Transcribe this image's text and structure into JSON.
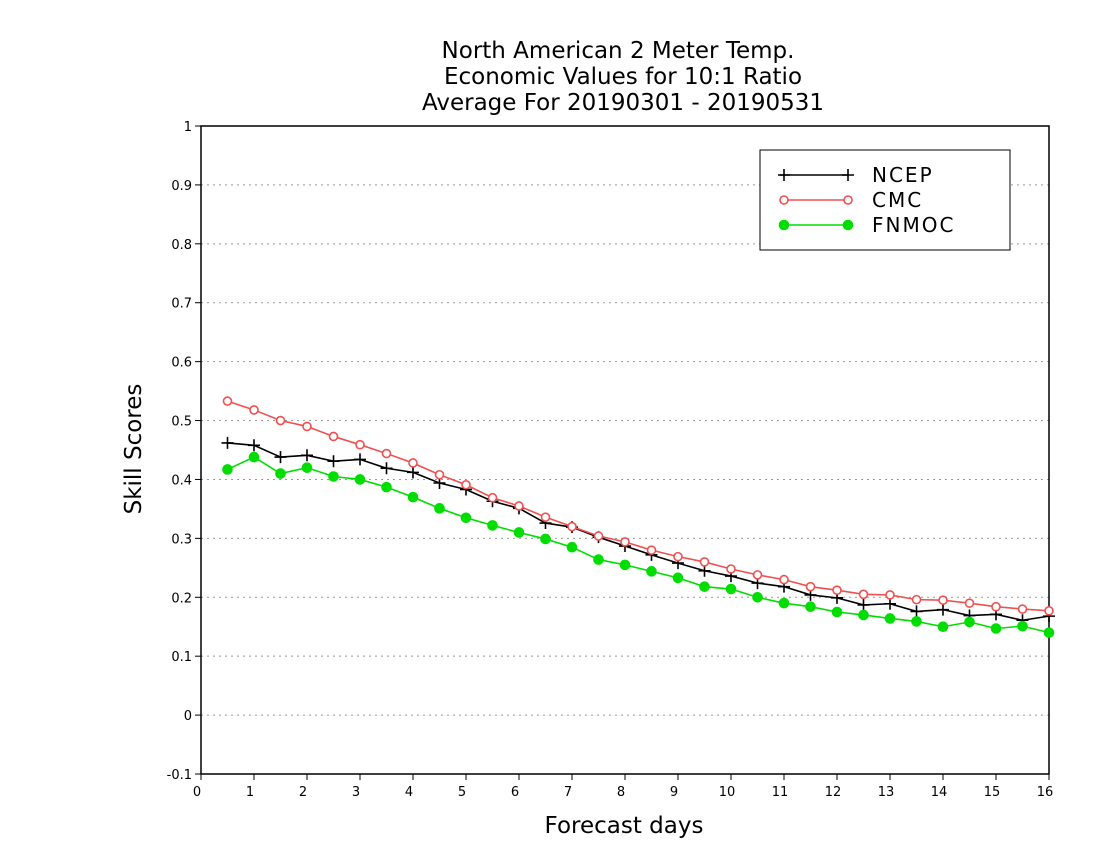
{
  "chart_data": {
    "type": "line",
    "title_lines": [
      "North American 2 Meter Temp.",
      "Economic Values for 10:1 Ratio",
      "Average For 20190301 - 20190531"
    ],
    "xlabel": "Forecast days",
    "ylabel": "Skill Scores",
    "xlim": [
      0,
      16
    ],
    "ylim": [
      -0.1,
      1
    ],
    "xticks": [
      "0",
      "1",
      "2",
      "3",
      "4",
      "5",
      "6",
      "7",
      "8",
      "9",
      "10",
      "11",
      "12",
      "13",
      "14",
      "15",
      "16"
    ],
    "yticks": [
      "-0.1",
      "0",
      "0.1",
      "0.2",
      "0.3",
      "0.4",
      "0.5",
      "0.6",
      "0.7",
      "0.8",
      "0.9",
      "1"
    ],
    "grid": "horizontal dotted",
    "legend_position": "top-right",
    "x": [
      0.5,
      1,
      1.5,
      2,
      2.5,
      3,
      3.5,
      4,
      4.5,
      5,
      5.5,
      6,
      6.5,
      7,
      7.5,
      8,
      8.5,
      9,
      9.5,
      10,
      10.5,
      11,
      11.5,
      12,
      12.5,
      13,
      13.5,
      14,
      14.5,
      15,
      15.5,
      16
    ],
    "series": [
      {
        "name": "NCEP",
        "color": "#000000",
        "marker": "plus",
        "values": [
          0.462,
          0.458,
          0.438,
          0.441,
          0.431,
          0.434,
          0.419,
          0.412,
          0.394,
          0.383,
          0.363,
          0.351,
          0.326,
          0.319,
          0.302,
          0.287,
          0.272,
          0.258,
          0.245,
          0.236,
          0.224,
          0.218,
          0.204,
          0.199,
          0.187,
          0.189,
          0.176,
          0.179,
          0.169,
          0.171,
          0.161,
          0.168
        ]
      },
      {
        "name": "CMC",
        "color": "#f05050",
        "marker": "open-circle",
        "values": [
          0.533,
          0.518,
          0.5,
          0.49,
          0.473,
          0.459,
          0.444,
          0.428,
          0.408,
          0.391,
          0.369,
          0.355,
          0.336,
          0.32,
          0.304,
          0.294,
          0.28,
          0.269,
          0.26,
          0.248,
          0.238,
          0.23,
          0.218,
          0.212,
          0.205,
          0.204,
          0.196,
          0.195,
          0.19,
          0.184,
          0.18,
          0.177
        ]
      },
      {
        "name": "FNMOC",
        "color": "#00dd00",
        "marker": "filled-circle",
        "values": [
          0.417,
          0.438,
          0.41,
          0.42,
          0.405,
          0.4,
          0.387,
          0.37,
          0.351,
          0.335,
          0.322,
          0.31,
          0.299,
          0.285,
          0.264,
          0.255,
          0.244,
          0.233,
          0.218,
          0.214,
          0.2,
          0.19,
          0.184,
          0.175,
          0.17,
          0.164,
          0.159,
          0.15,
          0.158,
          0.147,
          0.151,
          0.14
        ]
      }
    ]
  }
}
